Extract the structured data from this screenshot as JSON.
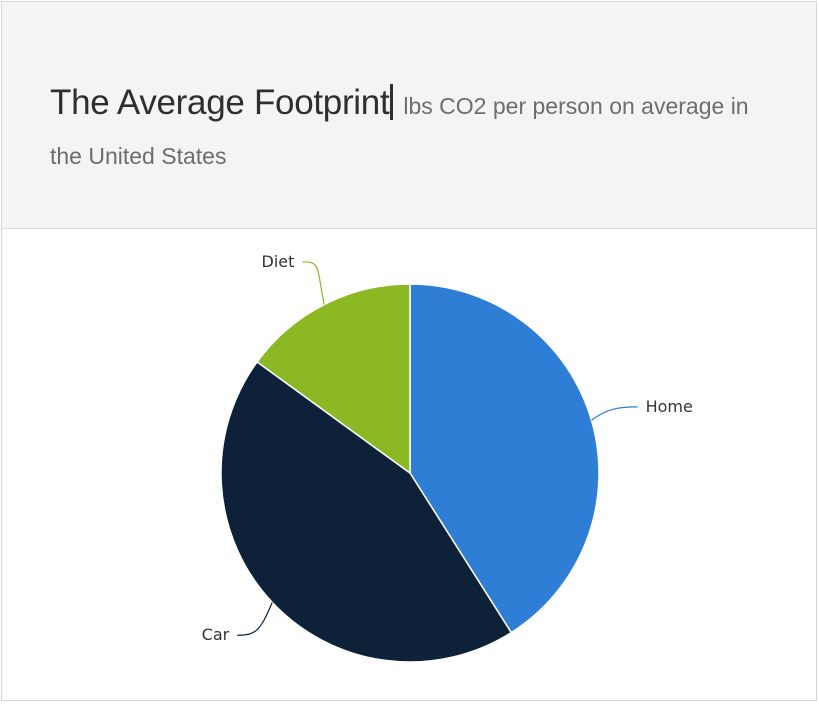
{
  "header": {
    "title": "The Average Footprint",
    "subtitle": "lbs CO2 per person on average in the United States"
  },
  "chart_data": {
    "type": "pie",
    "title": "The Average Footprint",
    "subtitle": "lbs CO2 per person on average in the United States",
    "slices": [
      {
        "label": "Home",
        "value": 41,
        "color": "#2e7ed6"
      },
      {
        "label": "Car",
        "value": 44,
        "color": "#0d2238"
      },
      {
        "label": "Diet",
        "value": 15,
        "color": "#8bb823"
      }
    ],
    "legend": "none",
    "start_angle": "top, clockwise"
  }
}
